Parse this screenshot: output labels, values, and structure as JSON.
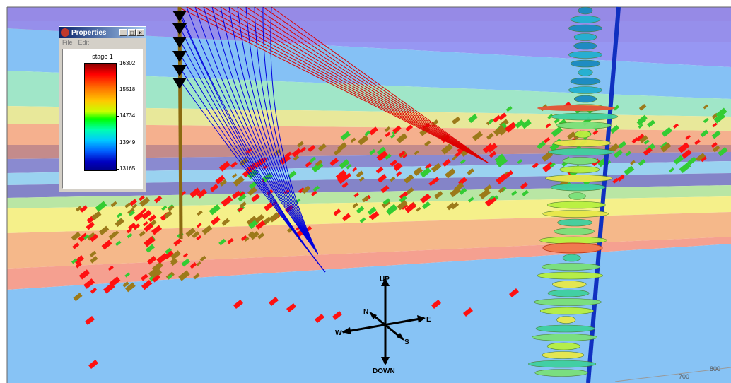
{
  "window": {
    "title": "Properties",
    "menu": [
      "File",
      "Edit"
    ]
  },
  "legend": {
    "stage_label": "stage 1",
    "ticks": [
      "16302",
      "15518",
      "14734",
      "13949",
      "13165"
    ]
  },
  "compass": {
    "up": "UP",
    "down": "DOWN",
    "north": "N",
    "east": "E",
    "south": "S",
    "west": "W"
  },
  "axis": {
    "labels": [
      "700",
      "800"
    ]
  },
  "colors": {
    "window_titlebar": "#0a246a",
    "event_red": "#ff1010",
    "event_olive": "#9c7a1a",
    "event_green": "#33cc33",
    "ray_red": "#dd0000",
    "ray_blue": "#0000dd",
    "wellbore": "#1030c0"
  },
  "icons": {
    "app": "properties-app-icon",
    "minimize": "minimize-icon",
    "maximize": "maximize-icon",
    "close": "close-icon"
  }
}
